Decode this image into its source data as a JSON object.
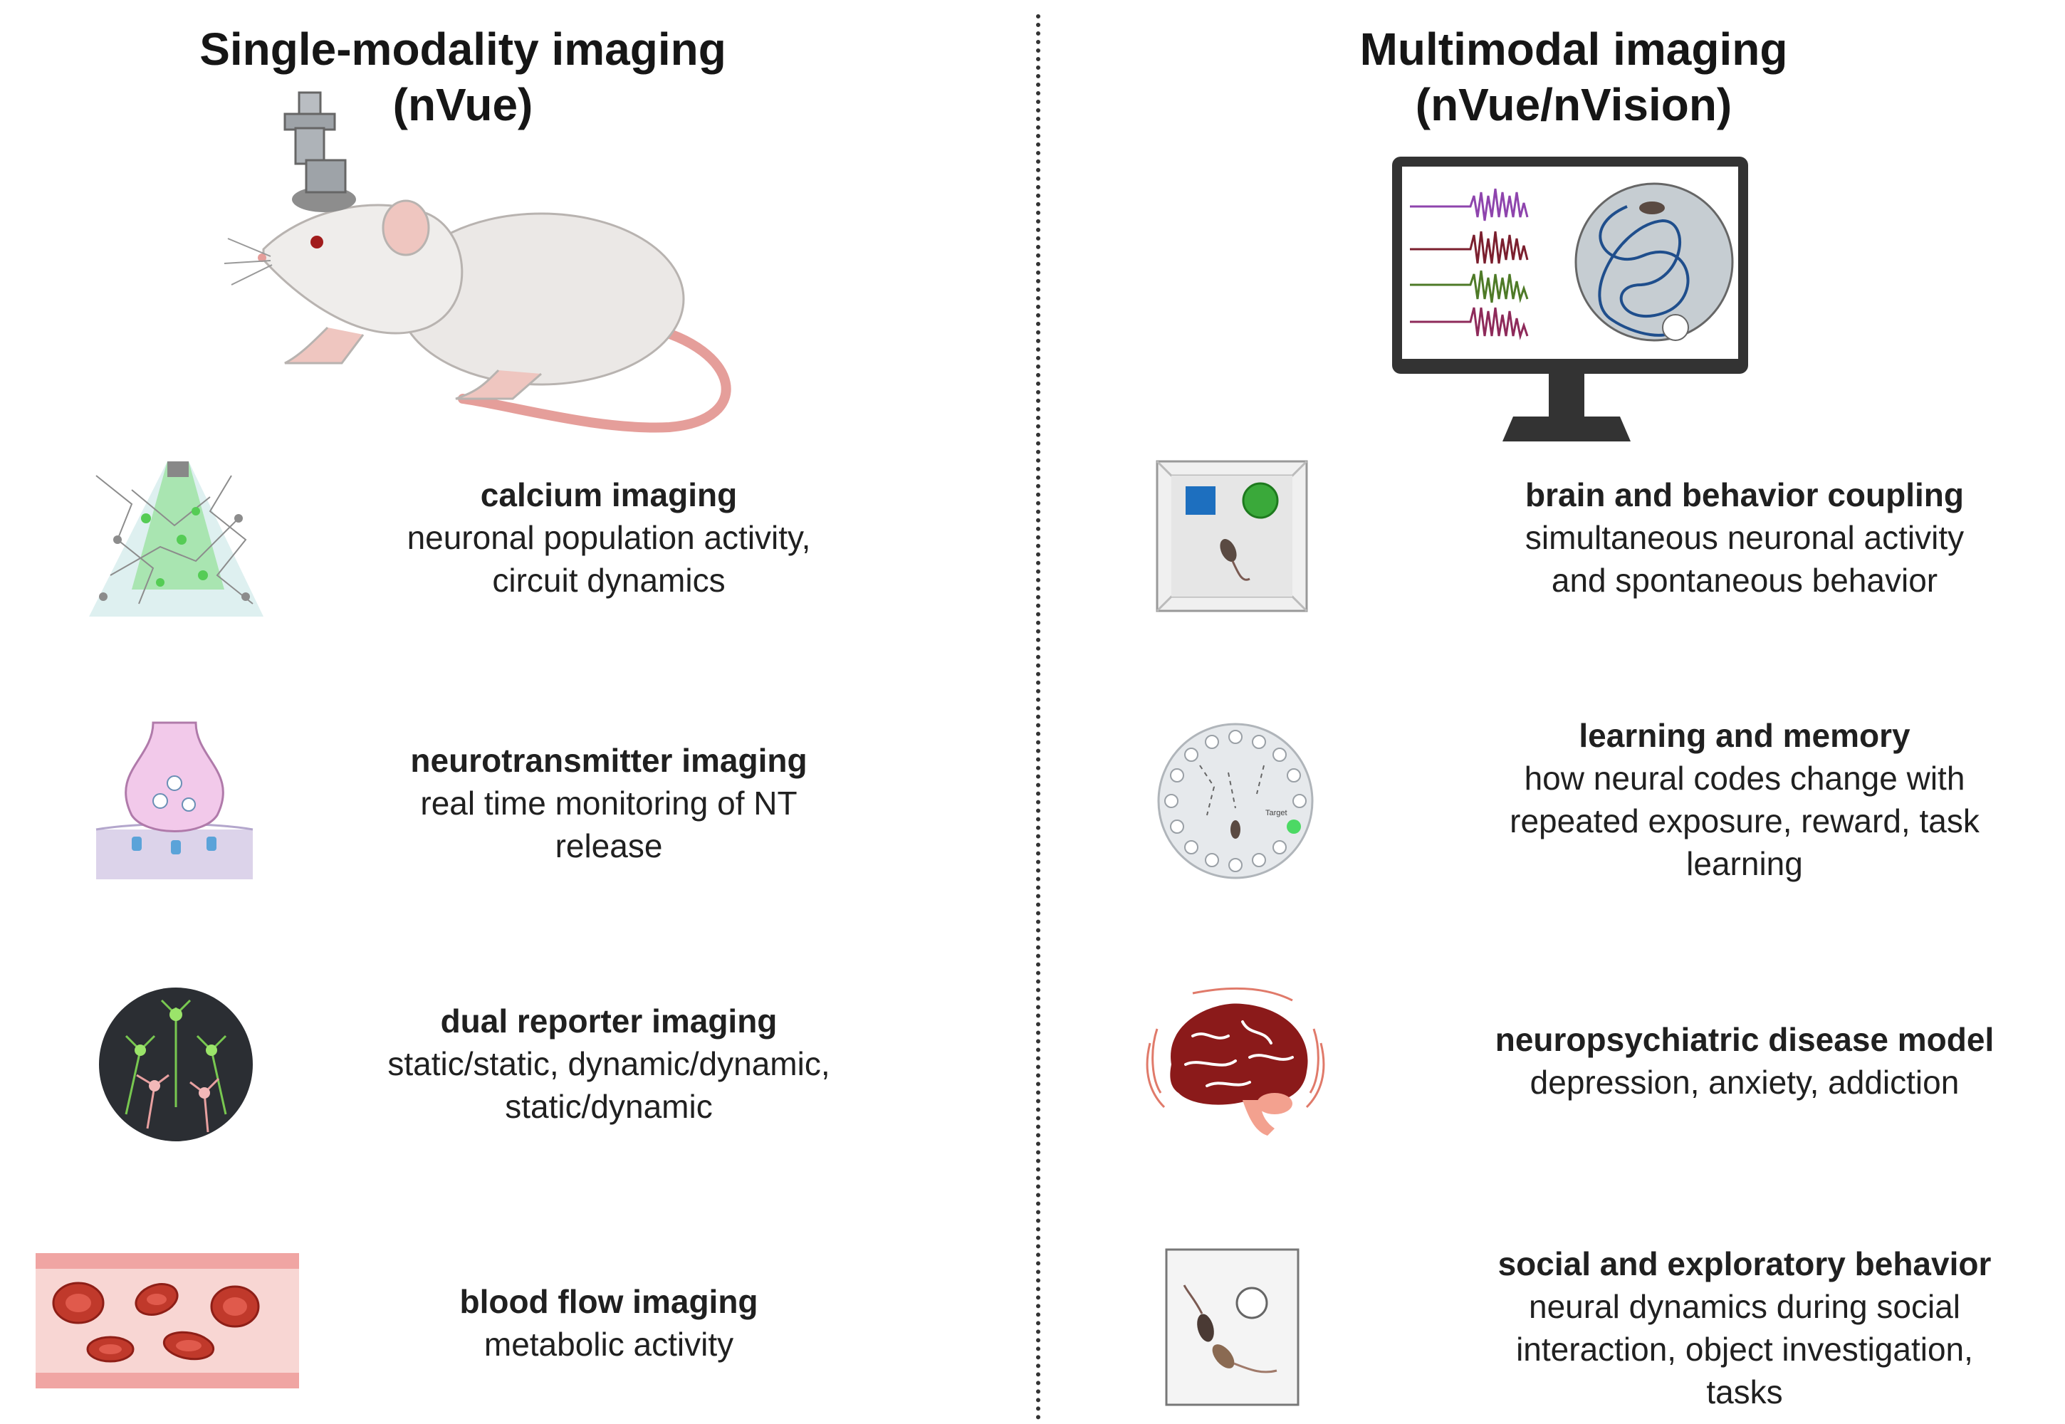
{
  "left": {
    "title_line1": "Single-modality imaging",
    "title_line2": "(nVue)",
    "items": [
      {
        "title": "calcium imaging",
        "desc": "neuronal population activity,\ncircuit dynamics",
        "icon": "calcium-imaging-icon"
      },
      {
        "title": "neurotransmitter imaging",
        "desc": "real time monitoring of NT\nrelease",
        "icon": "synapse-icon"
      },
      {
        "title": "dual reporter imaging",
        "desc": "static/static, dynamic/dynamic,\nstatic/dynamic",
        "icon": "dual-neurons-icon"
      },
      {
        "title": "blood flow imaging",
        "desc": "metabolic activity",
        "icon": "blood-vessel-icon"
      }
    ]
  },
  "right": {
    "title_line1": "Multimodal imaging",
    "title_line2": "(nVue/nVision)",
    "items": [
      {
        "title": "brain and behavior coupling",
        "desc": "simultaneous neuronal activity\nand spontaneous behavior",
        "icon": "open-field-arena-icon"
      },
      {
        "title": "learning and memory",
        "desc": "how neural codes change with\nrepeated exposure, reward, task\nlearning",
        "icon": "barnes-maze-icon"
      },
      {
        "title": "neuropsychiatric disease model",
        "desc": "depression, anxiety, addiction",
        "icon": "brain-icon"
      },
      {
        "title": "social and exploratory behavior",
        "desc": "neural dynamics during social\ninteraction, object investigation,\ntasks",
        "icon": "social-arena-icon"
      }
    ],
    "maze_label": "Target"
  },
  "colors": {
    "calcium_green": "#4cd964",
    "blood_red": "#c0392b",
    "brain_red": "#8b1a1a",
    "monitor_dark": "#333333"
  }
}
